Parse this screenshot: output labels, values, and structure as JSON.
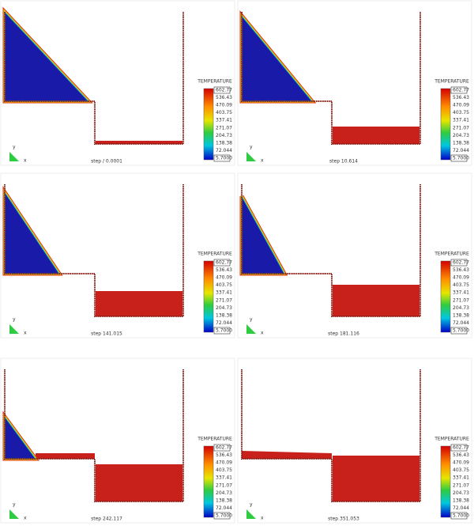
{
  "panels": [
    {
      "step": "step / 0.0001",
      "legend_title": "TEMPERATURE",
      "legend_ticks": [
        "602.77",
        "536.43",
        "470.09",
        "403.75",
        "337.41",
        "271.07",
        "204.73",
        "138.38",
        "72.044",
        "5.7000"
      ],
      "axis_y": "y",
      "axis_x": "x"
    },
    {
      "step": "step 10.614",
      "legend_title": "TEMPERATURE",
      "legend_ticks": [
        "602.77",
        "536.43",
        "470.09",
        "403.75",
        "337.41",
        "271.07",
        "204.73",
        "138.38",
        "72.044",
        "5.7000"
      ],
      "axis_y": "y",
      "axis_x": "x"
    },
    {
      "step": "step 141.015",
      "legend_title": "TEMPERATURE",
      "legend_ticks": [
        "602.77",
        "536.43",
        "470.09",
        "403.75",
        "337.41",
        "271.07",
        "204.73",
        "138.38",
        "72.044",
        "5.7000"
      ],
      "axis_y": "y",
      "axis_x": "x"
    },
    {
      "step": "step 181.116",
      "legend_title": "TEMPERATURE",
      "legend_ticks": [
        "602.77",
        "536.43",
        "470.09",
        "403.75",
        "337.41",
        "271.07",
        "204.73",
        "138.38",
        "72.044",
        "5.7000"
      ],
      "axis_y": "y",
      "axis_x": "x"
    },
    {
      "step": "step 242.117",
      "legend_title": "TEMPERATURE",
      "legend_ticks": [
        "602.77",
        "536.43",
        "470.09",
        "403.75",
        "337.41",
        "271.07",
        "204.73",
        "138.38",
        "72.044",
        "5.7000"
      ],
      "axis_y": "y",
      "axis_x": "x"
    },
    {
      "step": "step 351.053",
      "legend_title": "TEMPERATURE",
      "legend_ticks": [
        "602.77",
        "536.43",
        "470.09",
        "403.75",
        "337.41",
        "271.07",
        "204.73",
        "138.38",
        "72.044",
        "5.7000"
      ],
      "axis_y": "y",
      "axis_x": "x"
    }
  ]
}
